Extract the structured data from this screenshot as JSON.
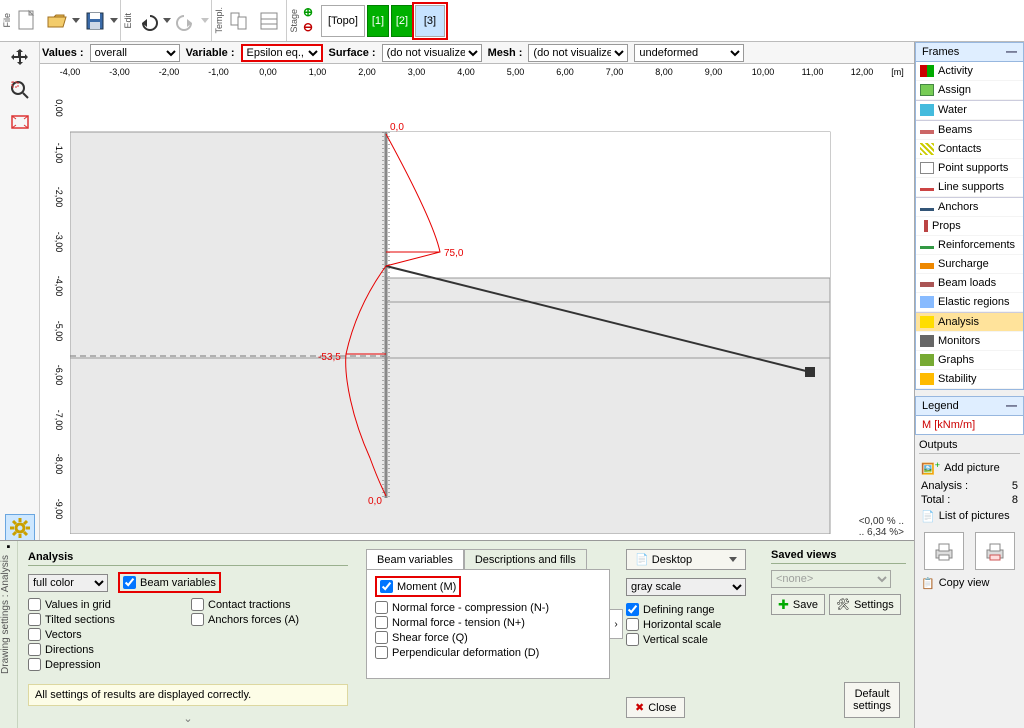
{
  "toolbar": {
    "groups": {
      "file": "File",
      "edit": "Edit",
      "templ": "Templ.",
      "stage": "Stage"
    },
    "stage_topo": "[Topo]",
    "stages": [
      "[1]",
      "[2]",
      "[3]"
    ]
  },
  "viz": {
    "values_lbl": "Values :",
    "values": "overall",
    "variable_lbl": "Variable :",
    "variable": "Epsilon eq., pl.",
    "surface_lbl": "Surface :",
    "surface": "(do not visualize)",
    "mesh_lbl": "Mesh :",
    "mesh": "(do not visualize)",
    "deform": "undeformed"
  },
  "ruler": {
    "x": [
      "-4,00",
      "-3,00",
      "-2,00",
      "-1,00",
      "0,00",
      "1,00",
      "2,00",
      "3,00",
      "4,00",
      "5,00",
      "6,00",
      "7,00",
      "8,00",
      "9,00",
      "10,00",
      "11,00",
      "12,00"
    ],
    "x_unit": "[m]",
    "y": [
      "0,00",
      "-1,00",
      "-2,00",
      "-3,00",
      "-4,00",
      "-5,00",
      "-6,00",
      "-7,00",
      "-8,00",
      "-9,00"
    ]
  },
  "curve": {
    "top_lbl": "0,0",
    "mid_lbl": "75,0",
    "bulge_lbl": "-53,5",
    "bot_lbl": "0,0"
  },
  "status": {
    "a": "<0,00 % ..",
    "b": ".. 6,34 %>"
  },
  "frames": {
    "head": "Frames",
    "items": [
      {
        "k": "activity",
        "t": "Activity",
        "c": "fi-act"
      },
      {
        "k": "assign",
        "t": "Assign",
        "c": "fi-asgn"
      },
      {
        "k": "water",
        "t": "Water",
        "c": "fi-water",
        "sep": true
      },
      {
        "k": "beams",
        "t": "Beams",
        "c": "fi-beam",
        "sep": true
      },
      {
        "k": "contacts",
        "t": "Contacts",
        "c": "fi-cont"
      },
      {
        "k": "pointsup",
        "t": "Point supports",
        "c": "fi-ptsp"
      },
      {
        "k": "linesup",
        "t": "Line supports",
        "c": "fi-lnsp"
      },
      {
        "k": "anchors",
        "t": "Anchors",
        "c": "fi-anc",
        "sep": true
      },
      {
        "k": "props",
        "t": "Props",
        "c": "fi-prop"
      },
      {
        "k": "reinf",
        "t": "Reinforcements",
        "c": "fi-rein"
      },
      {
        "k": "surch",
        "t": "Surcharge",
        "c": "fi-sur"
      },
      {
        "k": "beamloads",
        "t": "Beam loads",
        "c": "fi-bld"
      },
      {
        "k": "elastic",
        "t": "Elastic regions",
        "c": "fi-ela"
      },
      {
        "k": "analysis",
        "t": "Analysis",
        "c": "fi-ana",
        "sep": true,
        "active": true
      },
      {
        "k": "monitors",
        "t": "Monitors",
        "c": "fi-mon"
      },
      {
        "k": "graphs",
        "t": "Graphs",
        "c": "fi-gra"
      },
      {
        "k": "stability",
        "t": "Stability",
        "c": "fi-sta"
      }
    ]
  },
  "legend": {
    "head": "Legend",
    "body": "M [kNm/m]"
  },
  "outputs": {
    "head": "Outputs",
    "add_pic": "Add picture",
    "rows": [
      {
        "l": "Analysis :",
        "v": "5"
      },
      {
        "l": "Total :",
        "v": "8"
      }
    ],
    "list": "List of pictures",
    "copy": "Copy view"
  },
  "bottom": {
    "side": "Drawing settings : Analysis",
    "title": "Analysis",
    "mode": "full color",
    "beam_vars": "Beam variables",
    "col1": {
      "left": [
        "Values in grid",
        "Tilted sections",
        "Vectors",
        "Directions",
        "Depression"
      ],
      "right": [
        "Contact tractions",
        "Anchors forces (A)"
      ]
    },
    "msg": "All settings of results are displayed correctly.",
    "tab1": "Beam variables",
    "tab2": "Descriptions and fills",
    "bv": {
      "moment": "Moment (M)",
      "nneg": "Normal force - compression (N-)",
      "npos": "Normal force - tension (N+)",
      "q": "Shear force (Q)",
      "d": "Perpendicular deformation (D)"
    },
    "col3": {
      "desktop": "Desktop",
      "gray": "gray scale",
      "defrange": "Defining range",
      "hscale": "Horizontal scale",
      "vscale": "Vertical scale",
      "close": "Close",
      "defset": "Default\nsettings",
      "saved": "Saved views",
      "none": "<none>",
      "save": "Save",
      "settings": "Settings"
    }
  }
}
